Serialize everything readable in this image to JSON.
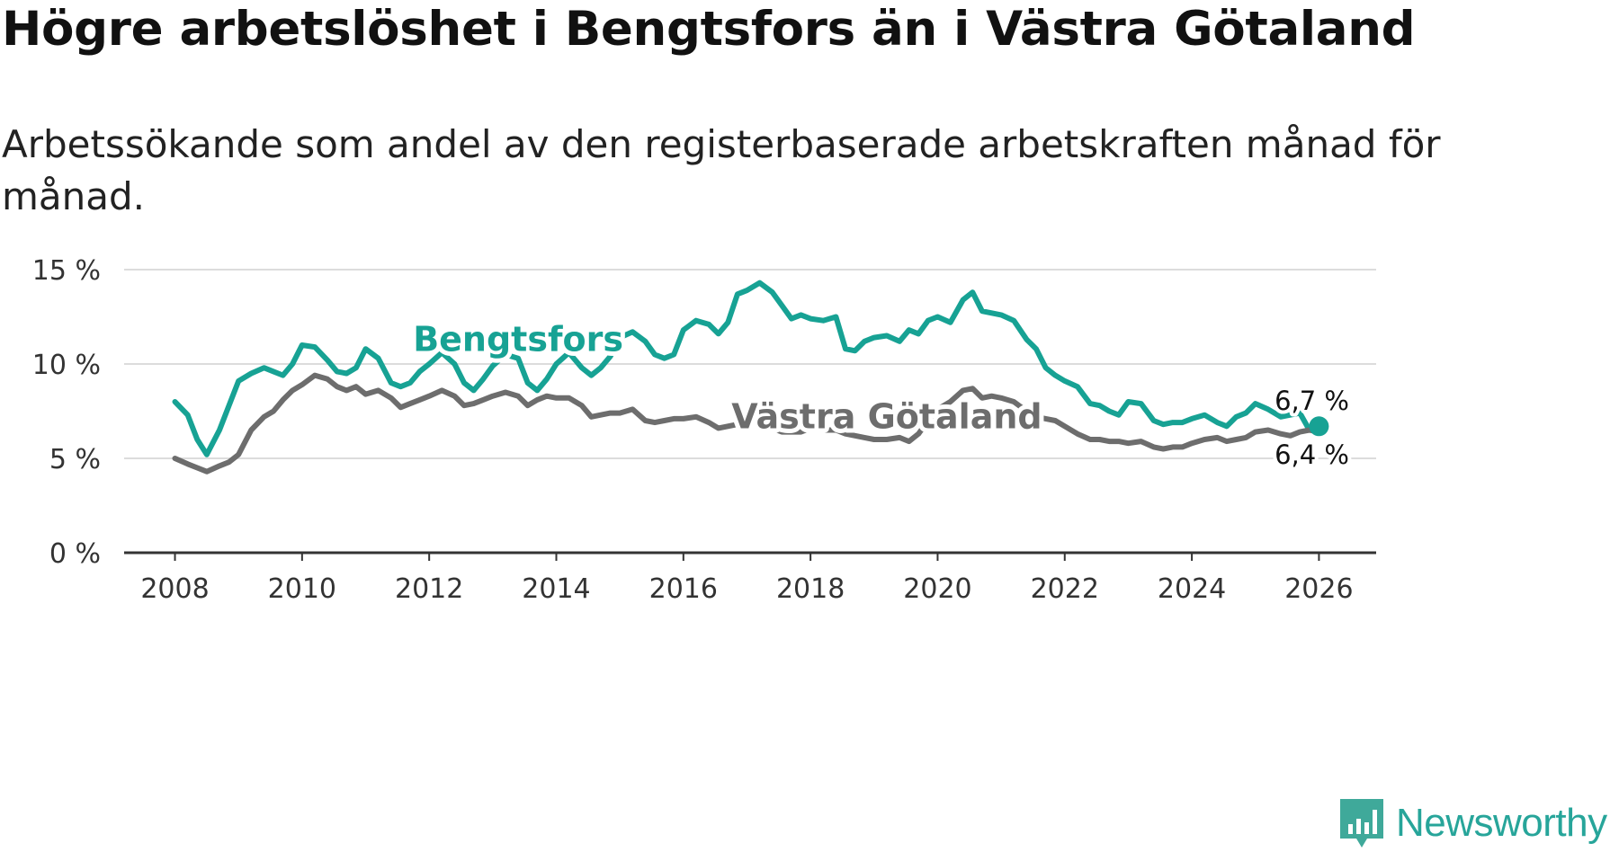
{
  "title": "Högre arbetslöshet i Bengtsfors än i Västra Götaland",
  "subtitle": "Arbetssökande som andel av den registerbaserade arbetskraften månad för månad.",
  "brand": "Newsworthy",
  "chart_data": {
    "type": "line",
    "title": "Högre arbetslöshet i Bengtsfors än i Västra Götaland",
    "xlabel": "",
    "ylabel": "",
    "xlim": [
      2007.2,
      2026.9
    ],
    "ylim": [
      0,
      15
    ],
    "x_ticks": [
      2008,
      2010,
      2012,
      2014,
      2016,
      2018,
      2020,
      2022,
      2024,
      2026
    ],
    "x_tick_labels": [
      "2008",
      "2010",
      "2012",
      "2014",
      "2016",
      "2018",
      "2020",
      "2022",
      "2024",
      "2026"
    ],
    "y_ticks": [
      0,
      5,
      10,
      15
    ],
    "y_tick_labels": [
      "0 %",
      "5 %",
      "10 %",
      "15 %"
    ],
    "grid": true,
    "series": [
      {
        "name": "Bengtsfors",
        "color": "#17a294",
        "label_at": [
          2013.4,
          10.7
        ],
        "end_label": "6,7 %",
        "x": [
          2008.0,
          2008.2,
          2008.35,
          2008.5,
          2008.7,
          2008.85,
          2009.0,
          2009.2,
          2009.4,
          2009.55,
          2009.7,
          2009.85,
          2010.0,
          2010.2,
          2010.4,
          2010.55,
          2010.7,
          2010.85,
          2011.0,
          2011.2,
          2011.4,
          2011.55,
          2011.7,
          2011.85,
          2012.0,
          2012.2,
          2012.4,
          2012.55,
          2012.7,
          2012.85,
          2013.0,
          2013.2,
          2013.4,
          2013.55,
          2013.7,
          2013.85,
          2014.0,
          2014.2,
          2014.4,
          2014.55,
          2014.7,
          2014.85,
          2015.0,
          2015.2,
          2015.4,
          2015.55,
          2015.7,
          2015.85,
          2016.0,
          2016.2,
          2016.4,
          2016.55,
          2016.7,
          2016.85,
          2017.0,
          2017.2,
          2017.4,
          2017.55,
          2017.7,
          2017.85,
          2018.0,
          2018.2,
          2018.4,
          2018.55,
          2018.7,
          2018.85,
          2019.0,
          2019.2,
          2019.4,
          2019.55,
          2019.7,
          2019.85,
          2020.0,
          2020.2,
          2020.4,
          2020.55,
          2020.7,
          2020.85,
          2021.0,
          2021.2,
          2021.4,
          2021.55,
          2021.7,
          2021.85,
          2022.0,
          2022.2,
          2022.4,
          2022.55,
          2022.7,
          2022.85,
          2023.0,
          2023.2,
          2023.4,
          2023.55,
          2023.7,
          2023.85,
          2024.0,
          2024.2,
          2024.4,
          2024.55,
          2024.7,
          2024.85,
          2025.0,
          2025.2,
          2025.4,
          2025.55,
          2025.7,
          2025.85,
          2026.0
        ],
        "values": [
          8.0,
          7.3,
          6.0,
          5.2,
          6.5,
          7.8,
          9.1,
          9.5,
          9.8,
          9.6,
          9.4,
          10.0,
          11.0,
          10.9,
          10.2,
          9.6,
          9.5,
          9.8,
          10.8,
          10.3,
          9.0,
          8.8,
          9.0,
          9.6,
          10.0,
          10.6,
          10.0,
          9.0,
          8.6,
          9.2,
          9.9,
          10.5,
          10.3,
          9.0,
          8.6,
          9.2,
          10.0,
          10.6,
          9.8,
          9.4,
          9.8,
          10.4,
          11.4,
          11.7,
          11.2,
          10.5,
          10.3,
          10.5,
          11.8,
          12.3,
          12.1,
          11.6,
          12.2,
          13.7,
          13.9,
          14.3,
          13.8,
          13.1,
          12.4,
          12.6,
          12.4,
          12.3,
          12.5,
          10.8,
          10.7,
          11.2,
          11.4,
          11.5,
          11.2,
          11.8,
          11.6,
          12.3,
          12.5,
          12.2,
          13.4,
          13.8,
          12.8,
          12.7,
          12.6,
          12.3,
          11.3,
          10.8,
          9.8,
          9.4,
          9.1,
          8.8,
          7.9,
          7.8,
          7.5,
          7.3,
          8.0,
          7.9,
          7.0,
          6.8,
          6.9,
          6.9,
          7.1,
          7.3,
          6.9,
          6.7,
          7.2,
          7.4,
          7.9,
          7.6,
          7.2,
          7.3,
          7.4,
          6.5,
          6.7
        ]
      },
      {
        "name": "Västra Götaland",
        "color": "#6d6d6d",
        "label_at": [
          2019.2,
          6.6
        ],
        "end_label": "6,4 %",
        "x": [
          2008.0,
          2008.2,
          2008.35,
          2008.5,
          2008.7,
          2008.85,
          2009.0,
          2009.2,
          2009.4,
          2009.55,
          2009.7,
          2009.85,
          2010.0,
          2010.2,
          2010.4,
          2010.55,
          2010.7,
          2010.85,
          2011.0,
          2011.2,
          2011.4,
          2011.55,
          2011.7,
          2011.85,
          2012.0,
          2012.2,
          2012.4,
          2012.55,
          2012.7,
          2012.85,
          2013.0,
          2013.2,
          2013.4,
          2013.55,
          2013.7,
          2013.85,
          2014.0,
          2014.2,
          2014.4,
          2014.55,
          2014.7,
          2014.85,
          2015.0,
          2015.2,
          2015.4,
          2015.55,
          2015.7,
          2015.85,
          2016.0,
          2016.2,
          2016.4,
          2016.55,
          2016.7,
          2016.85,
          2017.0,
          2017.2,
          2017.4,
          2017.55,
          2017.7,
          2017.85,
          2018.0,
          2018.2,
          2018.4,
          2018.55,
          2018.7,
          2018.85,
          2019.0,
          2019.2,
          2019.4,
          2019.55,
          2019.7,
          2019.85,
          2020.0,
          2020.2,
          2020.4,
          2020.55,
          2020.7,
          2020.85,
          2021.0,
          2021.2,
          2021.4,
          2021.55,
          2021.7,
          2021.85,
          2022.0,
          2022.2,
          2022.4,
          2022.55,
          2022.7,
          2022.85,
          2023.0,
          2023.2,
          2023.4,
          2023.55,
          2023.7,
          2023.85,
          2024.0,
          2024.2,
          2024.4,
          2024.55,
          2024.7,
          2024.85,
          2025.0,
          2025.2,
          2025.4,
          2025.55,
          2025.7,
          2025.85,
          2026.0
        ],
        "values": [
          5.0,
          4.7,
          4.5,
          4.3,
          4.6,
          4.8,
          5.2,
          6.5,
          7.2,
          7.5,
          8.1,
          8.6,
          8.9,
          9.4,
          9.2,
          8.8,
          8.6,
          8.8,
          8.4,
          8.6,
          8.2,
          7.7,
          7.9,
          8.1,
          8.3,
          8.6,
          8.3,
          7.8,
          7.9,
          8.1,
          8.3,
          8.5,
          8.3,
          7.8,
          8.1,
          8.3,
          8.2,
          8.2,
          7.8,
          7.2,
          7.3,
          7.4,
          7.4,
          7.6,
          7.0,
          6.9,
          7.0,
          7.1,
          7.1,
          7.2,
          6.9,
          6.6,
          6.7,
          6.8,
          6.9,
          6.9,
          6.6,
          6.4,
          6.4,
          6.4,
          6.6,
          6.5,
          6.5,
          6.3,
          6.2,
          6.1,
          6.0,
          6.0,
          6.1,
          5.9,
          6.3,
          7.0,
          7.6,
          8.0,
          8.6,
          8.7,
          8.2,
          8.3,
          8.2,
          8.0,
          7.5,
          7.2,
          7.1,
          7.0,
          6.7,
          6.3,
          6.0,
          6.0,
          5.9,
          5.9,
          5.8,
          5.9,
          5.6,
          5.5,
          5.6,
          5.6,
          5.8,
          6.0,
          6.1,
          5.9,
          6.0,
          6.1,
          6.4,
          6.5,
          6.3,
          6.2,
          6.4,
          6.5,
          6.4
        ]
      }
    ]
  }
}
